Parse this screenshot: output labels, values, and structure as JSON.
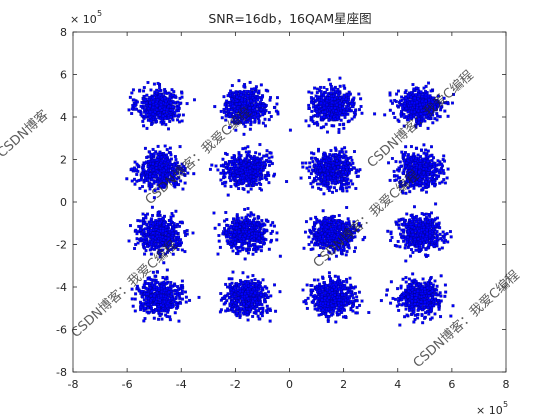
{
  "chart_data": {
    "type": "scatter",
    "title": "SNR=16db，16QAM星座图",
    "xlabel": "",
    "ylabel": "",
    "xlim": [
      -800000,
      800000
    ],
    "ylim": [
      -800000,
      800000
    ],
    "x_ticks": [
      -8,
      -6,
      -4,
      -2,
      0,
      2,
      4,
      6,
      8
    ],
    "y_ticks": [
      -8,
      -6,
      -4,
      -2,
      0,
      2,
      4,
      6,
      8
    ],
    "x_tick_labels": [
      "-8",
      "-6",
      "-4",
      "-2",
      "0",
      "2",
      "4",
      "6",
      "8"
    ],
    "y_tick_labels": [
      "-8",
      "-6",
      "-4",
      "-2",
      "0",
      "2",
      "4",
      "6",
      "8"
    ],
    "x_exponent": "× 10^5",
    "y_exponent": "× 10^5",
    "grid": false,
    "marker_color": "#0000ff",
    "marker_edge_color": "#00008b",
    "series": [
      {
        "points_per_cluster": 500,
        "noise_std": 40000,
        "clusters": [
          {
            "x": -480000,
            "y": 450000
          },
          {
            "x": -160000,
            "y": 450000
          },
          {
            "x": 160000,
            "y": 450000
          },
          {
            "x": 480000,
            "y": 450000
          },
          {
            "x": -480000,
            "y": 150000
          },
          {
            "x": -160000,
            "y": 150000
          },
          {
            "x": 160000,
            "y": 150000
          },
          {
            "x": 480000,
            "y": 150000
          },
          {
            "x": -480000,
            "y": -150000
          },
          {
            "x": -160000,
            "y": -150000
          },
          {
            "x": 160000,
            "y": -150000
          },
          {
            "x": 480000,
            "y": -150000
          },
          {
            "x": -480000,
            "y": -450000
          },
          {
            "x": -160000,
            "y": -450000
          },
          {
            "x": 160000,
            "y": -450000
          },
          {
            "x": 480000,
            "y": -450000
          }
        ]
      }
    ]
  },
  "watermark": {
    "text_full": "CSDN博客：我爱C编程",
    "text_short": "CSDN博客",
    "color": "#7aa0d8"
  }
}
